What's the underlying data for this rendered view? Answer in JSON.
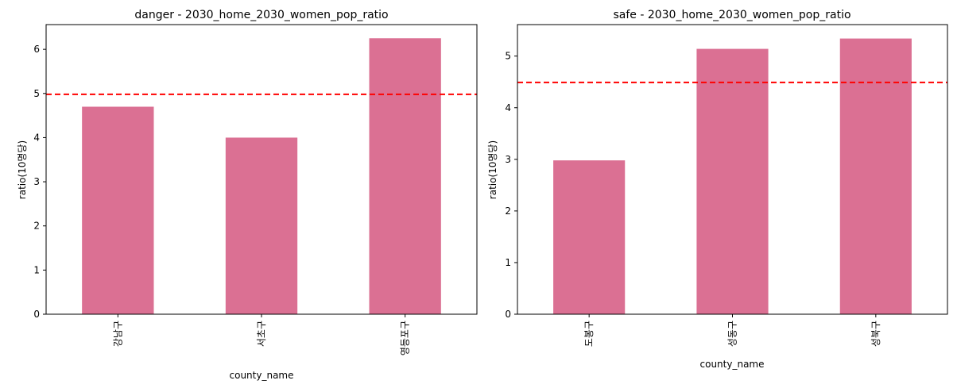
{
  "chart_data": [
    {
      "type": "bar",
      "title": "danger - 2030_home_2030_women_pop_ratio",
      "xlabel": "county_name",
      "ylabel": "ratio(10명당)",
      "categories": [
        "강남구",
        "서초구",
        "영등포구"
      ],
      "values": [
        4.7,
        4.0,
        6.25
      ],
      "ylim": [
        0,
        6.56
      ],
      "yticks": [
        0,
        1,
        2,
        3,
        4,
        5,
        6
      ],
      "reference_line": 4.98,
      "grid": false,
      "legend": "none",
      "bar_color": "#db7093",
      "reference_line_color": "#ff0000"
    },
    {
      "type": "bar",
      "title": "safe - 2030_home_2030_women_pop_ratio",
      "xlabel": "county_name",
      "ylabel": "ratio(10명당)",
      "categories": [
        "도봉구",
        "성동구",
        "성북구"
      ],
      "values": [
        2.98,
        5.14,
        5.34
      ],
      "ylim": [
        0,
        5.61
      ],
      "yticks": [
        0,
        1,
        2,
        3,
        4,
        5
      ],
      "reference_line": 4.49,
      "grid": false,
      "legend": "none",
      "bar_color": "#db7093",
      "reference_line_color": "#ff0000"
    }
  ]
}
